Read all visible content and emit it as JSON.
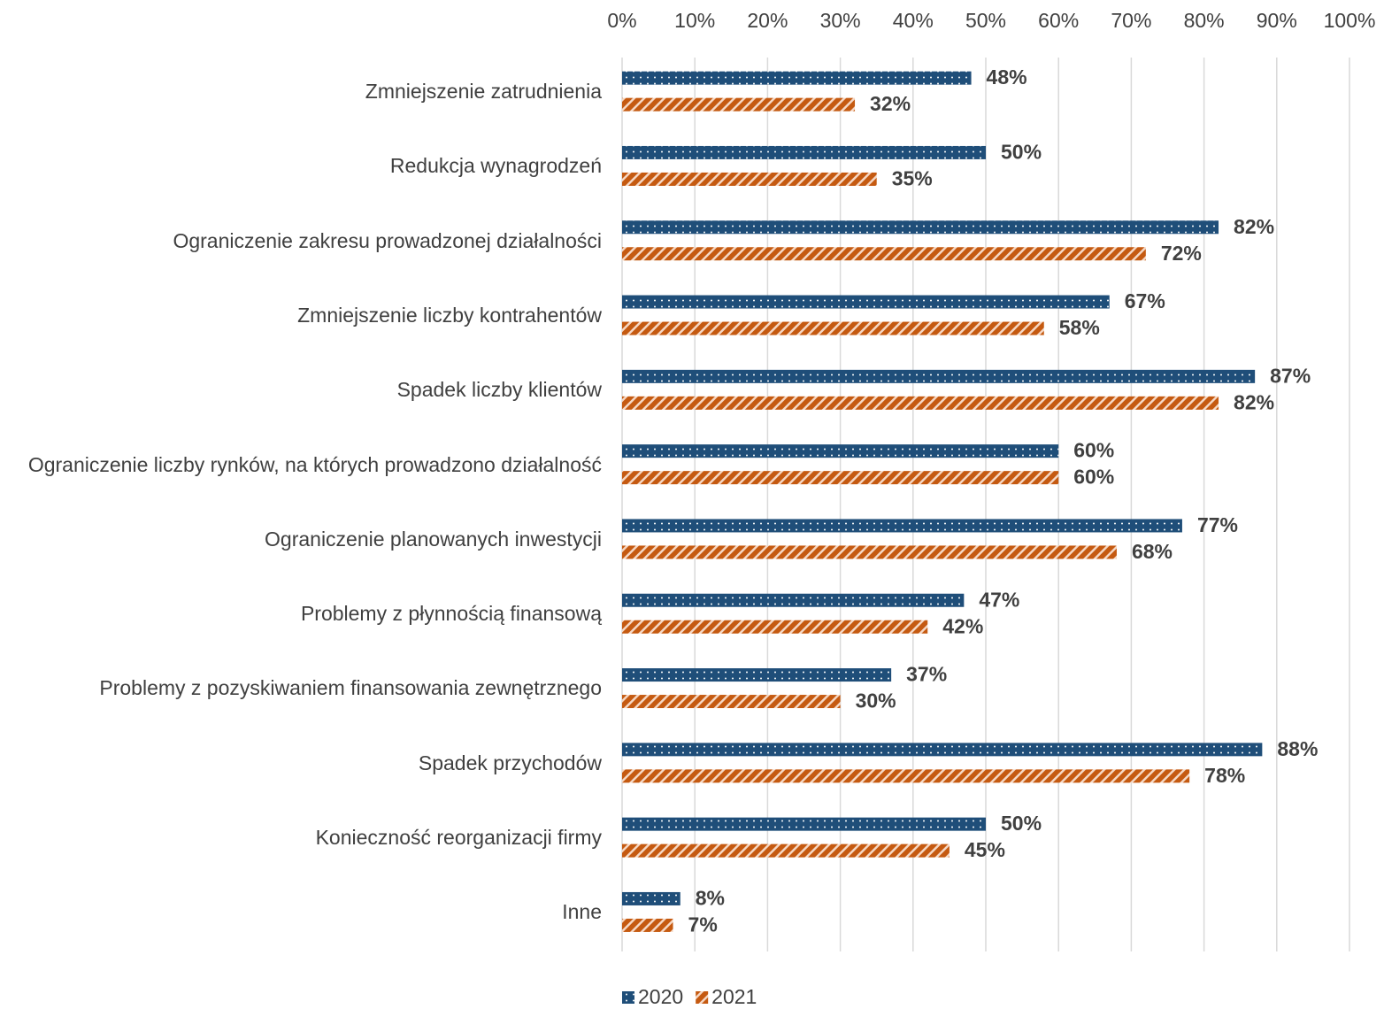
{
  "chart_data": {
    "type": "bar",
    "orientation": "horizontal",
    "categories": [
      "Zmniejszenie zatrudnienia",
      "Redukcja wynagrodzeń",
      "Ograniczenie zakresu prowadzonej działalności",
      "Zmniejszenie liczby kontrahentów",
      "Spadek liczby klientów",
      "Ograniczenie liczby rynków, na których prowadzono działalność",
      "Ograniczenie planowanych inwestycji",
      "Problemy z płynnością finansową",
      "Problemy z pozyskiwaniem finansowania zewnętrznego",
      "Spadek przychodów",
      "Konieczność reorganizacji firmy",
      "Inne"
    ],
    "series": [
      {
        "name": "2020",
        "color": "#1f4e79",
        "pattern": "dots",
        "values": [
          48,
          50,
          82,
          67,
          87,
          60,
          77,
          47,
          37,
          88,
          50,
          8
        ],
        "value_labels": [
          "48%",
          "50%",
          "82%",
          "67%",
          "87%",
          "60%",
          "77%",
          "47%",
          "37%",
          "88%",
          "50%",
          "8%"
        ]
      },
      {
        "name": "2021",
        "color": "#c55a11",
        "pattern": "stripes",
        "values": [
          32,
          35,
          72,
          58,
          82,
          60,
          68,
          42,
          30,
          78,
          45,
          7
        ],
        "value_labels": [
          "32%",
          "35%",
          "72%",
          "58%",
          "82%",
          "60%",
          "68%",
          "42%",
          "30%",
          "78%",
          "45%",
          "7%"
        ]
      }
    ],
    "xlim": [
      0,
      100
    ],
    "xticks": [
      {
        "value": 0,
        "label": "0%"
      },
      {
        "value": 10,
        "label": "10%"
      },
      {
        "value": 20,
        "label": "20%"
      },
      {
        "value": 30,
        "label": "30%"
      },
      {
        "value": 40,
        "label": "40%"
      },
      {
        "value": 50,
        "label": "50%"
      },
      {
        "value": 60,
        "label": "60%"
      },
      {
        "value": 70,
        "label": "70%"
      },
      {
        "value": 80,
        "label": "80%"
      },
      {
        "value": 90,
        "label": "90%"
      },
      {
        "value": 100,
        "label": "100%"
      }
    ],
    "grid": true,
    "legend": "bottom"
  }
}
